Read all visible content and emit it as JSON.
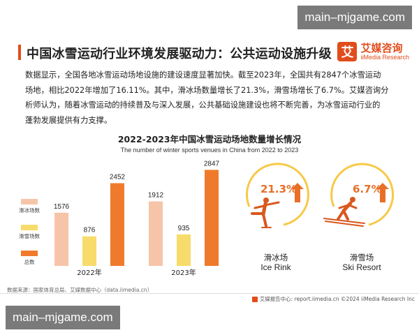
{
  "watermark": {
    "top": "main–mjgame.com",
    "bottom": "main–mjgame.com"
  },
  "header": {
    "title": "中国冰雪运动行业环境发展驱动力：公共运动设施升级"
  },
  "logo": {
    "cn": "艾媒咨询",
    "en": "iiMedia Research",
    "mark": "艾"
  },
  "paragraph": {
    "lines": [
      "数据显示，全国各地冰雪运动场地设施的建设速度显著加快。截至2023年，全国共有2847个冰雪运动",
      "场地，相比2022年增加了16.11%。其中，滑冰场数量增长了21.3%，滑雪场增长了6.7%。艾媒咨询分",
      "析师认为，随着冰雪运动的持续普及与深入发展，公共基础设施建设也将不断完善，为冰雪运动行业的",
      "蓬勃发展提供有力支撑。"
    ]
  },
  "chart_data": {
    "type": "bar",
    "title": "2022-2023年中国冰雪运动场地数量增长情况",
    "subtitle": "The number of winter sports venues in China from 2022 to 2023",
    "categories": [
      "2022年",
      "2023年"
    ],
    "series": [
      {
        "name": "滑冰场数",
        "values": [
          1576,
          1912
        ],
        "color": "#f6c4a8"
      },
      {
        "name": "滑雪场数",
        "values": [
          876,
          935
        ],
        "color": "#f7dc6b"
      },
      {
        "name": "总数",
        "values": [
          2452,
          2847
        ],
        "color": "#f07a2c"
      }
    ],
    "ylim": [
      0,
      3000
    ],
    "legend_position": "left"
  },
  "growth": {
    "ice": {
      "pct": "21.3%",
      "cn": "滑冰场",
      "en": "Ice Rink",
      "icon": "ice-skater-icon",
      "growth_direction": "up"
    },
    "ski": {
      "pct": "6.7%",
      "cn": "滑雪场",
      "en": "Ski Resort",
      "icon": "skier-icon",
      "growth_direction": "up"
    },
    "accent_color": "#e76f27",
    "ring_color": "#f7c948"
  },
  "footer": {
    "source": "数据来源：国家体育总局、艾媒数据中心（data.iimedia.cn）",
    "credit": "艾媒报告中心: report.iimedia.cn   ©2024  iiMedia Research  Inc"
  },
  "colors": {
    "brand": "#e04d1c"
  }
}
